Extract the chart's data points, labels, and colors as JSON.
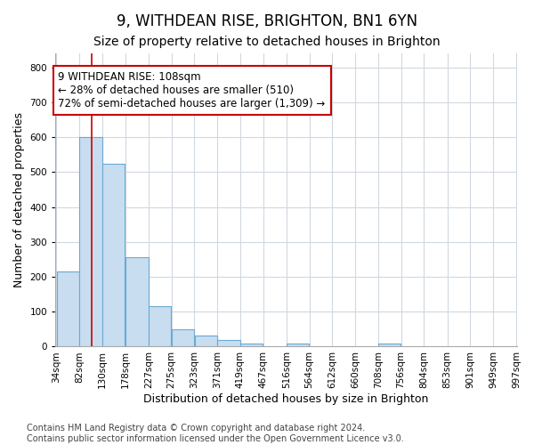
{
  "title": "9, WITHDEAN RISE, BRIGHTON, BN1 6YN",
  "subtitle": "Size of property relative to detached houses in Brighton",
  "xlabel": "Distribution of detached houses by size in Brighton",
  "ylabel": "Number of detached properties",
  "bin_edges": [
    34,
    82,
    130,
    178,
    227,
    275,
    323,
    371,
    419,
    467,
    516,
    564,
    612,
    660,
    708,
    756,
    804,
    853,
    901,
    949,
    997
  ],
  "bin_labels": [
    "34sqm",
    "82sqm",
    "130sqm",
    "178sqm",
    "227sqm",
    "275sqm",
    "323sqm",
    "371sqm",
    "419sqm",
    "467sqm",
    "516sqm",
    "564sqm",
    "612sqm",
    "660sqm",
    "708sqm",
    "756sqm",
    "804sqm",
    "853sqm",
    "901sqm",
    "949sqm",
    "997sqm"
  ],
  "bar_heights": [
    215,
    600,
    525,
    255,
    115,
    50,
    33,
    18,
    8,
    0,
    8,
    0,
    0,
    0,
    8,
    0,
    0,
    0,
    0,
    0
  ],
  "bar_color": "#c8ddf0",
  "bar_edge_color": "#6aaad4",
  "property_size": 108,
  "vline_color": "#cc0000",
  "annotation_text": "9 WITHDEAN RISE: 108sqm\n← 28% of detached houses are smaller (510)\n72% of semi-detached houses are larger (1,309) →",
  "annotation_box_color": "#ffffff",
  "annotation_box_edge_color": "#cc0000",
  "ylim": [
    0,
    840
  ],
  "yticks": [
    0,
    100,
    200,
    300,
    400,
    500,
    600,
    700,
    800
  ],
  "footer_line1": "Contains HM Land Registry data © Crown copyright and database right 2024.",
  "footer_line2": "Contains public sector information licensed under the Open Government Licence v3.0.",
  "bg_color": "#ffffff",
  "grid_color": "#d0d8e0",
  "title_fontsize": 12,
  "subtitle_fontsize": 10,
  "axis_label_fontsize": 9,
  "tick_fontsize": 7.5,
  "annotation_fontsize": 8.5,
  "footer_fontsize": 7
}
